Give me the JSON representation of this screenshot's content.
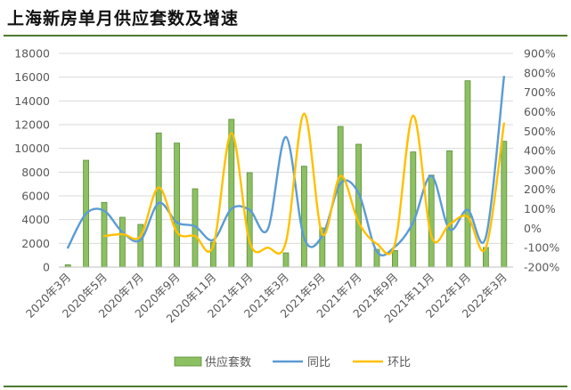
{
  "title": "上海新房单月供应套数及增速",
  "chart_data": {
    "type": "bar",
    "categories": [
      "2020年3月",
      "2020年4月",
      "2020年5月",
      "2020年6月",
      "2020年7月",
      "2020年8月",
      "2020年9月",
      "2020年10月",
      "2020年11月",
      "2020年12月",
      "2021年1月",
      "2021年2月",
      "2021年3月",
      "2021年4月",
      "2021年5月",
      "2021年6月",
      "2021年7月",
      "2021年8月",
      "2021年9月",
      "2021年10月",
      "2021年11月",
      "2021年12月",
      "2022年1月",
      "2022年2月",
      "2022年3月"
    ],
    "x_tick_labels": [
      "2020年3月",
      "2020年5月",
      "2020年7月",
      "2020年9月",
      "2020年11月",
      "2021年1月",
      "2021年3月",
      "2021年5月",
      "2021年7月",
      "2021年9月",
      "2021年11月",
      "2022年1月",
      "2022年3月"
    ],
    "series": [
      {
        "name": "供应套数",
        "type": "bar",
        "axis": "left",
        "color": "#8cc063",
        "values": [
          200,
          9000,
          5450,
          4200,
          3600,
          11300,
          10450,
          6600,
          2100,
          12450,
          7950,
          null,
          1200,
          8500,
          3300,
          11850,
          10350,
          1500,
          1400,
          9700,
          7750,
          9800,
          15700,
          1650,
          10600
        ]
      },
      {
        "name": "同比",
        "type": "line",
        "axis": "right",
        "color": "#5b9bd5",
        "values": [
          -100,
          75,
          90,
          -20,
          -60,
          130,
          30,
          10,
          -60,
          100,
          95,
          -5,
          470,
          -50,
          -40,
          230,
          180,
          -120,
          -95,
          30,
          270,
          -5,
          95,
          -45,
          780
        ]
      },
      {
        "name": "环比",
        "type": "line",
        "axis": "right",
        "color": "#ffc000",
        "values": [
          null,
          null,
          -40,
          -30,
          -40,
          210,
          -20,
          -40,
          -90,
          490,
          -70,
          -100,
          -70,
          590,
          -30,
          270,
          30,
          -80,
          -80,
          580,
          -40,
          20,
          60,
          -100,
          540
        ]
      }
    ],
    "ylim_left": [
      0,
      18000
    ],
    "yticks_left": [
      "0",
      "2000",
      "4000",
      "6000",
      "8000",
      "10000",
      "12000",
      "14000",
      "16000",
      "18000"
    ],
    "ylim_right": [
      -200,
      900
    ],
    "yticks_right": [
      "-200%",
      "-100%",
      "0%",
      "100%",
      "200%",
      "300%",
      "400%",
      "500%",
      "600%",
      "700%",
      "800%",
      "900%"
    ],
    "grid": true,
    "legend_position": "bottom"
  }
}
